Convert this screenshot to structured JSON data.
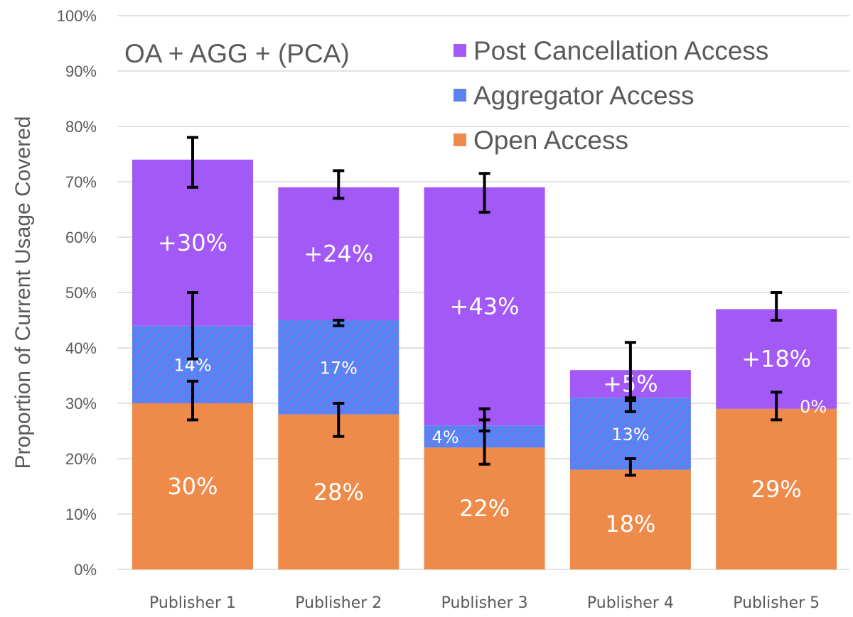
{
  "chart_data": {
    "type": "bar",
    "stacked": true,
    "title": "OA + AGG + (PCA)",
    "ylabel": "Proportion of Current Usage Covered",
    "xlabel": "",
    "ylim": [
      0,
      100
    ],
    "yticks": [
      "0%",
      "10%",
      "20%",
      "30%",
      "40%",
      "50%",
      "60%",
      "70%",
      "80%",
      "90%",
      "100%"
    ],
    "grid": true,
    "legend_position": "top-right",
    "categories": [
      "Publisher 1",
      "Publisher 2",
      "Publisher 3",
      "Publisher 4",
      "Publisher 5"
    ],
    "series": [
      {
        "name": "Open Access",
        "color": "#EE8B4A",
        "pattern": "solid",
        "values": [
          30,
          28,
          22,
          18,
          29
        ],
        "labels": [
          "30%",
          "28%",
          "22%",
          "18%",
          "29%"
        ],
        "error": [
          [
            27,
            34
          ],
          [
            24,
            30
          ],
          [
            19,
            27
          ],
          [
            17,
            20
          ],
          [
            27,
            32
          ]
        ]
      },
      {
        "name": "Aggregator Access",
        "color": "#4C8BF0",
        "pattern": "hatched",
        "values": [
          14,
          17,
          4,
          13,
          0
        ],
        "labels": [
          "14%",
          "17%",
          "4%",
          "13%",
          "0%"
        ],
        "error": [
          [
            38,
            50
          ],
          [
            44,
            45
          ],
          [
            25,
            29
          ],
          [
            28.5,
            30.5
          ],
          null
        ]
      },
      {
        "name": "Post Cancellation Access",
        "color": "#A259F5",
        "pattern": "solid",
        "values": [
          30,
          24,
          43,
          5,
          18
        ],
        "labels": [
          "+30%",
          "+24%",
          "+43%",
          "+5%",
          "+18%"
        ],
        "error": [
          [
            69,
            78
          ],
          [
            67,
            72
          ],
          [
            64.5,
            71.5
          ],
          [
            31,
            41
          ],
          [
            45,
            50
          ]
        ]
      }
    ]
  }
}
